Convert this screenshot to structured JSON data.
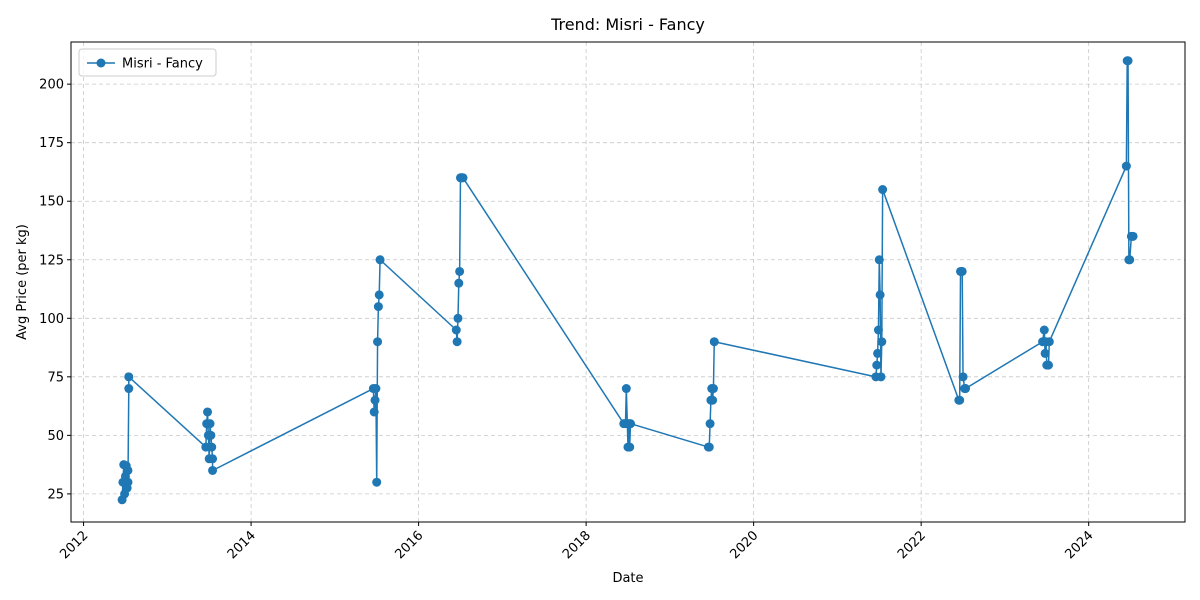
{
  "chart_data": {
    "type": "line",
    "title": "Trend: Misri - Fancy",
    "xlabel": "Date",
    "ylabel": "Avg Price (per kg)",
    "xlim": [
      2011.85,
      2025.15
    ],
    "ylim": [
      13,
      218
    ],
    "x_ticks": [
      2012,
      2014,
      2016,
      2018,
      2020,
      2022,
      2024
    ],
    "y_ticks": [
      25,
      50,
      75,
      100,
      125,
      150,
      175,
      200
    ],
    "grid": true,
    "legend_position": "top-left",
    "series": [
      {
        "name": "Misri - Fancy",
        "color": "#1f77b4",
        "marker": "circle",
        "x": [
          2012.46,
          2012.47,
          2012.48,
          2012.49,
          2012.5,
          2012.51,
          2012.52,
          2012.52,
          2012.53,
          2012.53,
          2012.54,
          2012.54,
          2013.46,
          2013.47,
          2013.48,
          2013.49,
          2013.5,
          2013.51,
          2013.52,
          2013.53,
          2013.54,
          2013.54,
          2015.46,
          2015.47,
          2015.48,
          2015.49,
          2015.5,
          2015.51,
          2015.52,
          2015.53,
          2015.54,
          2016.45,
          2016.46,
          2016.47,
          2016.48,
          2016.49,
          2016.5,
          2016.51,
          2016.52,
          2016.53,
          2018.45,
          2018.47,
          2018.48,
          2018.5,
          2018.51,
          2018.52,
          2018.53,
          2019.46,
          2019.47,
          2019.48,
          2019.49,
          2019.5,
          2019.51,
          2019.52,
          2019.53,
          2021.46,
          2021.47,
          2021.48,
          2021.49,
          2021.5,
          2021.51,
          2021.52,
          2021.53,
          2021.54,
          2022.45,
          2022.46,
          2022.47,
          2022.48,
          2022.49,
          2022.5,
          2022.52,
          2022.53,
          2023.45,
          2023.47,
          2023.48,
          2023.49,
          2023.5,
          2023.52,
          2023.53,
          2024.45,
          2024.46,
          2024.47,
          2024.48,
          2024.49,
          2024.51,
          2024.52,
          2024.53
        ],
        "y": [
          22.5,
          30,
          37.5,
          25,
          32.5,
          37,
          27.5,
          30,
          35,
          30,
          70,
          75,
          45,
          55,
          60,
          50,
          40,
          55,
          50,
          45,
          40,
          35,
          70,
          60,
          65,
          70,
          30,
          90,
          105,
          110,
          125,
          95,
          90,
          100,
          115,
          120,
          160,
          160,
          160,
          160,
          55,
          55,
          70,
          45,
          55,
          45,
          55,
          45,
          45,
          55,
          65,
          70,
          65,
          70,
          90,
          75,
          80,
          85,
          95,
          125,
          110,
          75,
          90,
          155,
          65,
          65,
          120,
          120,
          120,
          75,
          70,
          70,
          90,
          95,
          85,
          90,
          80,
          80,
          90,
          165,
          210,
          210,
          125,
          125,
          135,
          135,
          135
        ]
      }
    ]
  }
}
